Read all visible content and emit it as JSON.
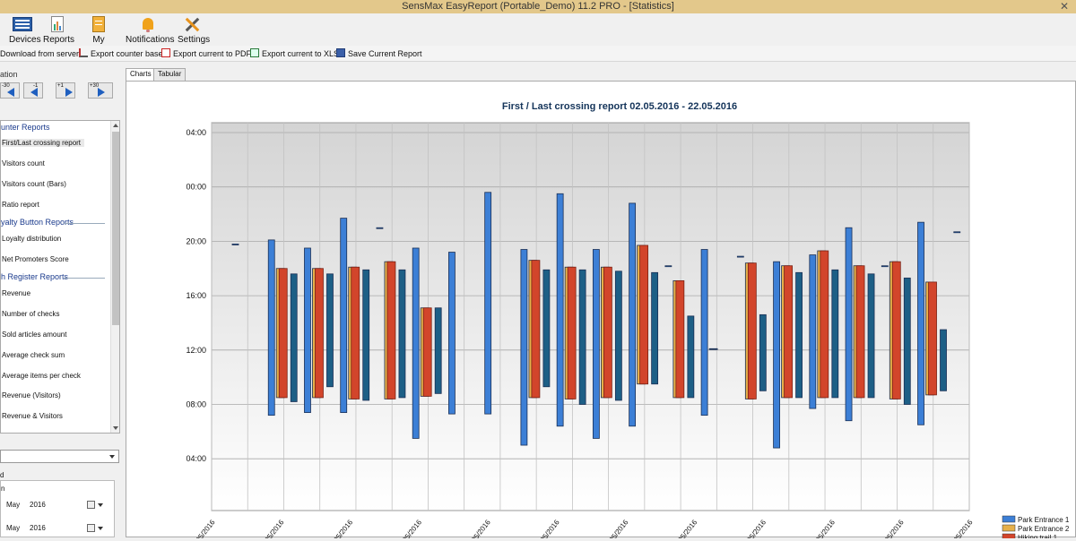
{
  "window": {
    "title": "SensMax EasyReport (Portable_Demo) 11.2 PRO - [Statistics]"
  },
  "ribbon": {
    "devices": "Devices",
    "reports": "Reports",
    "my_reports": "My Reports",
    "notifications": "Notifications",
    "settings": "Settings"
  },
  "toolbar": {
    "download": "Download from server",
    "export_counter": "Export counter base",
    "export_pdf": "Export current to PDF",
    "export_xls": "Export current to XLS",
    "save_report": "Save Current Report"
  },
  "sidebar": {
    "navigation_label": "ation",
    "nav": {
      "back30": "-30",
      "back1": "-1",
      "fwd1": "+1",
      "fwd30": "+30"
    },
    "headers": {
      "counter": "unter Reports",
      "loyalty": "yalty Button Reports",
      "register": "h Register Reports"
    },
    "items": {
      "first_last": "First/Last crossing report",
      "visitors_count": "Visitors count",
      "visitors_bars": "Visitors count (Bars)",
      "ratio": "Ratio report",
      "loyalty_dist": "Loyalty distribution",
      "nps": "Net Promoters Score",
      "revenue": "Revenue",
      "checks": "Number of checks",
      "sold": "Sold articles amount",
      "avg_check": "Average check sum",
      "avg_items": "Average items per check",
      "rev_visitors": "Revenue (Visitors)",
      "rev_and_visitors": "Revenue & Visitors"
    },
    "period_label": "d",
    "from_label": "n",
    "date1": {
      "month": "May",
      "year": "2016"
    },
    "date2": {
      "month": "May",
      "year": "2016"
    }
  },
  "tabs": {
    "charts": "Charts",
    "tabular": "Tabular"
  },
  "colors": {
    "park_entrance_1": "#3c7fd6",
    "park_entrance_2": "#e6b04a",
    "hiking_trail_1": "#d2452b",
    "series4": "#1d5f86"
  },
  "chart_data": {
    "type": "range-bar",
    "title": "First / Last crossing report 02.05.2016 - 22.05.2016",
    "y_ticks": [
      "04:00",
      "00:00",
      "20:00",
      "16:00",
      "12:00",
      "08:00",
      "04:00"
    ],
    "y_axis_note": "time of day, 04:00 at top wrapping to 04:00 at bottom",
    "x_tick_labels": [
      "/05/2016",
      "3/05/2016",
      "5/05/2016",
      "7/05/2016",
      "9/05/2016",
      "1/05/2016",
      "3/05/2016",
      "5/05/2016",
      "7/05/2016",
      "9/05/2016",
      "1/05/2016",
      "3/05/2016"
    ],
    "legend": [
      "Park Entrance 1",
      "Park Entrance 2",
      "Hiking trail 1"
    ],
    "series_colors": [
      "#3c7fd6",
      "#e6b04a",
      "#d2452b",
      "#1d5f86"
    ],
    "days": [
      {
        "bars": [
          [
            1.6,
            19.8
          ]
        ]
      },
      {
        "bars": [
          [
            7.2,
            20.1
          ],
          [
            8.5,
            18.0
          ],
          [
            8.5,
            18.0
          ],
          [
            8.2,
            17.6
          ]
        ]
      },
      {
        "bars": [
          [
            7.4,
            19.5
          ],
          [
            8.5,
            18.0
          ],
          [
            8.5,
            18.0
          ],
          [
            9.3,
            17.6
          ]
        ]
      },
      {
        "bars": [
          [
            7.4,
            21.7
          ],
          [
            8.4,
            18.1
          ],
          [
            8.4,
            18.1
          ],
          [
            8.3,
            17.9
          ]
        ]
      },
      {
        "bars": [
          [
            3.5,
            21.0
          ],
          [
            8.4,
            18.5
          ],
          [
            8.4,
            18.5
          ],
          [
            8.5,
            17.9
          ]
        ]
      },
      {
        "bars": [
          [
            5.5,
            19.5
          ],
          [
            8.6,
            15.1
          ],
          [
            8.6,
            15.1
          ],
          [
            8.8,
            15.1
          ]
        ]
      },
      {
        "bars": [
          [
            7.3,
            19.2
          ]
        ]
      },
      {
        "bars": [
          [
            7.3,
            23.6
          ]
        ]
      },
      {
        "bars": [
          [
            5.0,
            19.4
          ],
          [
            8.5,
            18.6
          ],
          [
            8.5,
            18.6
          ],
          [
            9.3,
            17.9
          ]
        ]
      },
      {
        "bars": [
          [
            6.4,
            23.5
          ],
          [
            8.4,
            18.1
          ],
          [
            8.4,
            18.1
          ],
          [
            8.0,
            17.9
          ]
        ]
      },
      {
        "bars": [
          [
            5.5,
            19.4
          ],
          [
            8.5,
            18.1
          ],
          [
            8.5,
            18.1
          ],
          [
            8.3,
            17.8
          ]
        ]
      },
      {
        "bars": [
          [
            6.4,
            22.8
          ],
          [
            9.5,
            19.7
          ],
          [
            9.5,
            19.7
          ],
          [
            9.5,
            17.7
          ]
        ]
      },
      {
        "bars": [
          [
            0.3,
            18.2
          ],
          [
            8.5,
            17.1
          ],
          [
            8.5,
            17.1
          ],
          [
            8.5,
            14.5
          ]
        ]
      },
      {
        "bars": [
          [
            7.2,
            19.4
          ],
          [
            12.1,
            12.1
          ]
        ]
      },
      {
        "bars": [
          [
            3.9,
            18.9
          ],
          [
            8.4,
            18.4
          ],
          [
            8.4,
            18.4
          ],
          [
            9.0,
            14.6
          ]
        ]
      },
      {
        "bars": [
          [
            4.8,
            18.5
          ],
          [
            8.5,
            18.2
          ],
          [
            8.5,
            18.2
          ],
          [
            8.5,
            17.7
          ]
        ]
      },
      {
        "bars": [
          [
            7.7,
            19.0
          ],
          [
            8.5,
            19.3
          ],
          [
            8.5,
            19.3
          ],
          [
            8.5,
            17.9
          ]
        ]
      },
      {
        "bars": [
          [
            6.8,
            21.0
          ],
          [
            8.5,
            18.2
          ],
          [
            8.5,
            18.2
          ],
          [
            8.5,
            17.6
          ]
        ]
      },
      {
        "bars": [
          [
            0.8,
            18.2
          ],
          [
            8.4,
            18.5
          ],
          [
            8.4,
            18.5
          ],
          [
            8.0,
            17.3
          ]
        ]
      },
      {
        "bars": [
          [
            6.5,
            21.4
          ],
          [
            8.7,
            17.0
          ],
          [
            8.7,
            17.0
          ],
          [
            9.0,
            13.5
          ]
        ]
      },
      {
        "bars": [
          [
            0.8,
            20.7
          ]
        ]
      }
    ]
  }
}
